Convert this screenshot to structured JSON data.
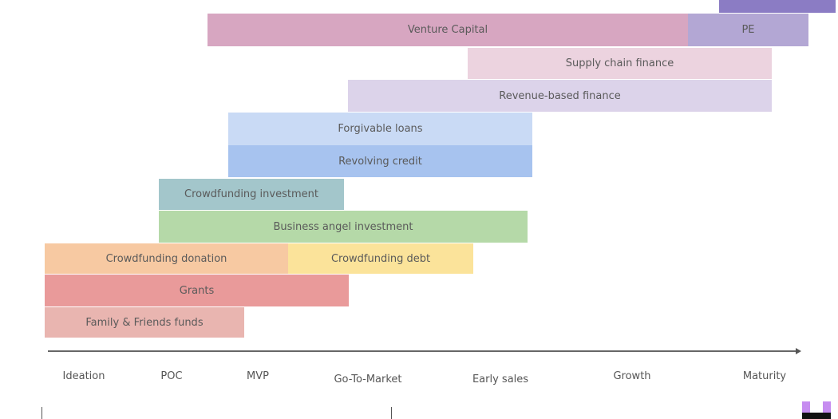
{
  "bars": [
    {
      "label": "",
      "color": "#8b7cc4"
    },
    {
      "label": "Venture Capital",
      "color": "#d7a6c1"
    },
    {
      "label": "PE",
      "color": "#b3a7d4"
    },
    {
      "label": "Supply chain finance",
      "color": "#ecd3df"
    },
    {
      "label": "Revenue-based finance",
      "color": "#dcd3ea"
    },
    {
      "label": "Forgivable loans",
      "color": "#c9daf5"
    },
    {
      "label": "Revolving credit",
      "color": "#a7c3ef"
    },
    {
      "label": "Crowdfunding investment",
      "color": "#a3c6cb"
    },
    {
      "label": "Business angel investment",
      "color": "#b5d9a8"
    },
    {
      "label": "Crowdfunding donation",
      "color": "#f7c9a2"
    },
    {
      "label": "Crowdfunding debt",
      "color": "#fbe39a"
    },
    {
      "label": "Grants",
      "color": "#e99a9a"
    },
    {
      "label": "Family & Friends funds",
      "color": "#e9b5b0"
    }
  ],
  "stages": [
    "Ideation",
    "POC",
    "MVP",
    "Go-To-Market",
    "Early sales",
    "Growth",
    "Maturity"
  ],
  "logo_colors": [
    "#c68cf0",
    "#111111"
  ]
}
